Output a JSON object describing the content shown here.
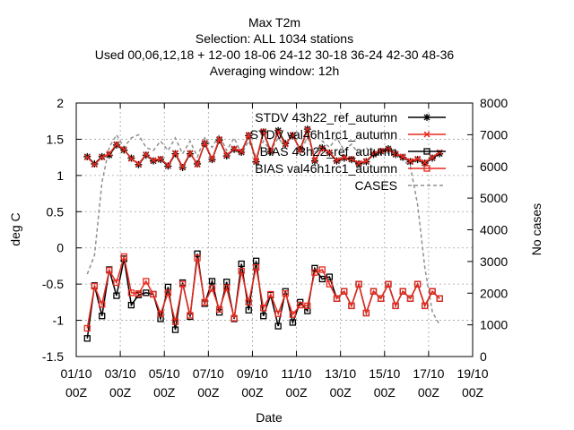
{
  "chart_data": {
    "type": "line",
    "title": [
      "Max T2m",
      "Selection: ALL    1034 stations",
      "Used  00,06,12,18  + 12-00 18-06 24-12 30-18 36-24 42-30 48-36",
      "Averaging window: 12h"
    ],
    "xlabel": "Date",
    "ylabel": "deg C",
    "y2label": "No cases",
    "ylim": [
      -1.5,
      2
    ],
    "y2lim": [
      0,
      8000
    ],
    "yticks": [
      "-1.5",
      "-1",
      "-0.5",
      "0",
      "0.5",
      "1",
      "1.5",
      "2"
    ],
    "y2ticks": [
      "0",
      "1000",
      "2000",
      "3000",
      "4000",
      "5000",
      "6000",
      "7000",
      "8000"
    ],
    "xticks": [
      {
        "day": 1,
        "line1": "01/10",
        "line2": "00Z"
      },
      {
        "day": 3,
        "line1": "03/10",
        "line2": "00Z"
      },
      {
        "day": 5,
        "line1": "05/10",
        "line2": "00Z"
      },
      {
        "day": 7,
        "line1": "07/10",
        "line2": "00Z"
      },
      {
        "day": 9,
        "line1": "09/10",
        "line2": "00Z"
      },
      {
        "day": 11,
        "line1": "11/10",
        "line2": "00Z"
      },
      {
        "day": 13,
        "line1": "13/10",
        "line2": "00Z"
      },
      {
        "day": 15,
        "line1": "15/10",
        "line2": "00Z"
      },
      {
        "day": 17,
        "line1": "17/10",
        "line2": "00Z"
      },
      {
        "day": 19,
        "line1": "19/10",
        "line2": "00Z"
      }
    ],
    "xlim": [
      1,
      19
    ],
    "x": [
      1.5,
      1.83,
      2.17,
      2.5,
      2.83,
      3.17,
      3.5,
      3.83,
      4.17,
      4.5,
      4.83,
      5.17,
      5.5,
      5.83,
      6.17,
      6.5,
      6.83,
      7.17,
      7.5,
      7.83,
      8.17,
      8.5,
      8.83,
      9.17,
      9.5,
      9.83,
      10.17,
      10.5,
      10.83,
      11.17,
      11.5,
      11.83,
      12.17,
      12.5,
      12.83,
      13.17,
      13.5,
      13.83,
      14.17,
      14.5,
      14.83,
      15.17,
      15.5,
      15.83,
      16.17,
      16.5,
      16.83,
      17.17,
      17.5
    ],
    "series": [
      {
        "name": "STDV 43h22_ref_autumn",
        "marker": "star",
        "color": "#000000",
        "values": [
          1.26,
          1.16,
          1.26,
          1.28,
          1.42,
          1.35,
          1.24,
          1.15,
          1.28,
          1.2,
          1.22,
          1.13,
          1.3,
          1.11,
          1.3,
          1.16,
          1.44,
          1.22,
          1.49,
          1.27,
          1.36,
          1.32,
          1.55,
          1.19,
          1.6,
          1.33,
          1.62,
          1.44,
          1.55,
          1.36,
          1.64,
          1.2,
          1.38,
          1.31,
          1.2,
          1.24,
          1.22,
          1.16,
          1.19,
          1.29,
          1.33,
          1.37,
          1.29,
          1.25,
          1.19,
          1.22,
          1.17,
          1.24,
          1.3
        ]
      },
      {
        "name": "STDV val46h1rc1_autumn",
        "marker": "x",
        "color": "#e8291e",
        "values": [
          1.25,
          1.15,
          1.25,
          1.3,
          1.43,
          1.36,
          1.23,
          1.16,
          1.29,
          1.21,
          1.23,
          1.14,
          1.31,
          1.12,
          1.31,
          1.15,
          1.45,
          1.23,
          1.5,
          1.28,
          1.37,
          1.33,
          1.56,
          1.2,
          1.61,
          1.34,
          1.6,
          1.43,
          1.56,
          1.35,
          1.63,
          1.21,
          1.37,
          1.32,
          1.21,
          1.25,
          1.23,
          1.17,
          1.2,
          1.3,
          1.34,
          1.36,
          1.3,
          1.26,
          1.2,
          1.23,
          1.18,
          1.25,
          1.32
        ]
      },
      {
        "name": "BIAS 43h22_ref_autumn",
        "marker": "square",
        "color": "#000000",
        "values": [
          -1.25,
          -0.52,
          -0.94,
          -0.3,
          -0.66,
          -0.15,
          -0.79,
          -0.65,
          -0.62,
          -0.64,
          -0.98,
          -0.54,
          -1.13,
          -0.48,
          -0.95,
          -0.08,
          -0.77,
          -0.46,
          -0.89,
          -0.47,
          -0.98,
          -0.22,
          -0.86,
          -0.18,
          -0.94,
          -0.65,
          -1.08,
          -0.6,
          -1.03,
          -0.75,
          -0.87,
          -0.28,
          -0.43,
          -0.4,
          -0.7,
          -0.6,
          -0.8,
          -0.5,
          -0.9,
          -0.6,
          -0.7,
          -0.5,
          -0.8,
          -0.6,
          -0.7,
          -0.5,
          -0.8,
          -0.6,
          -0.7
        ]
      },
      {
        "name": "BIAS val46h1rc1_autumn",
        "marker": "square",
        "color": "#e8291e",
        "values": [
          -1.11,
          -0.53,
          -0.78,
          -0.31,
          -0.48,
          -0.12,
          -0.62,
          -0.63,
          -0.46,
          -0.64,
          -0.91,
          -0.62,
          -1.02,
          -0.5,
          -0.93,
          -0.14,
          -0.75,
          -0.56,
          -0.85,
          -0.55,
          -0.97,
          -0.32,
          -0.75,
          -0.27,
          -0.83,
          -0.64,
          -0.91,
          -0.63,
          -0.92,
          -0.79,
          -0.8,
          -0.34,
          -0.3,
          -0.5,
          -0.7,
          -0.6,
          -0.8,
          -0.5,
          -0.9,
          -0.6,
          -0.7,
          -0.5,
          -0.8,
          -0.6,
          -0.7,
          -0.5,
          -0.8,
          -0.6,
          -0.7
        ]
      },
      {
        "name": "CASES",
        "marker": "none",
        "color": "#909090",
        "dashed": true,
        "axis": "y2",
        "values": [
          2600,
          3200,
          5500,
          6600,
          7000,
          6600,
          6900,
          7000,
          6600,
          6500,
          6800,
          6500,
          6900,
          6400,
          6800,
          6300,
          6900,
          6600,
          7000,
          6500,
          6900,
          6400,
          6800,
          6300,
          6800,
          6500,
          6900,
          6600,
          7000,
          6500,
          6900,
          6400,
          6800,
          6600,
          6900,
          6500,
          6700,
          6400,
          6600,
          6300,
          6600,
          6400,
          6500,
          6200,
          6000,
          4800,
          2800,
          1400,
          1000
        ]
      }
    ],
    "grid": true,
    "legend_position": "top-right"
  }
}
